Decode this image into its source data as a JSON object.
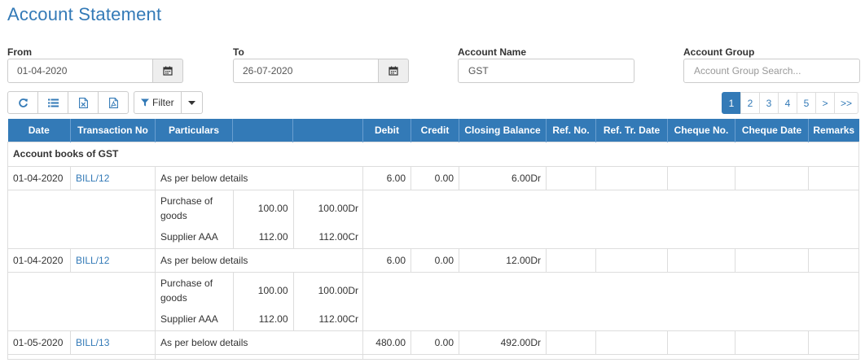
{
  "page": {
    "title": "Account Statement"
  },
  "filters": {
    "from": {
      "label": "From",
      "value": "01-04-2020"
    },
    "to": {
      "label": "To",
      "value": "26-07-2020"
    },
    "account_name": {
      "label": "Account Name",
      "value": "GST"
    },
    "account_group": {
      "label": "Account Group",
      "placeholder": "Account Group Search..."
    }
  },
  "toolbar": {
    "filter_label": "Filter"
  },
  "icons": {
    "calendar": "calendar-icon",
    "refresh": "refresh-icon",
    "list": "list-icon",
    "excel": "excel-icon",
    "pdf": "pdf-icon",
    "filter": "filter-icon",
    "caret": "caret-down-icon"
  },
  "pagination": {
    "pages": [
      "1",
      "2",
      "3",
      "4",
      "5",
      ">",
      ">>"
    ],
    "active": "1"
  },
  "colors": {
    "primary": "#337ab7",
    "border": "#dddddd"
  },
  "table": {
    "headers": [
      "Date",
      "Transaction No",
      "Particulars",
      "",
      "",
      "Debit",
      "Credit",
      "Closing Balance",
      "Ref. No.",
      "Ref. Tr. Date",
      "Cheque No.",
      "Cheque Date",
      "Remarks"
    ],
    "group_title": "Account books of GST",
    "rows": [
      {
        "date": "01-04-2020",
        "txn": "BILL/12",
        "particulars": "As per below details",
        "debit": "6.00",
        "credit": "0.00",
        "closing": "6.00Dr",
        "details": [
          {
            "name": "Purchase of goods",
            "amount": "100.00",
            "balance": "100.00Dr"
          },
          {
            "name": "Supplier AAA",
            "amount": "112.00",
            "balance": "112.00Cr"
          }
        ]
      },
      {
        "date": "01-04-2020",
        "txn": "BILL/12",
        "particulars": "As per below details",
        "debit": "6.00",
        "credit": "0.00",
        "closing": "12.00Dr",
        "details": [
          {
            "name": "Purchase of goods",
            "amount": "100.00",
            "balance": "100.00Dr"
          },
          {
            "name": "Supplier AAA",
            "amount": "112.00",
            "balance": "112.00Cr"
          }
        ]
      },
      {
        "date": "01-05-2020",
        "txn": "BILL/13",
        "particulars": "As per below details",
        "debit": "480.00",
        "credit": "0.00",
        "closing": "492.00Dr",
        "details": []
      }
    ]
  }
}
